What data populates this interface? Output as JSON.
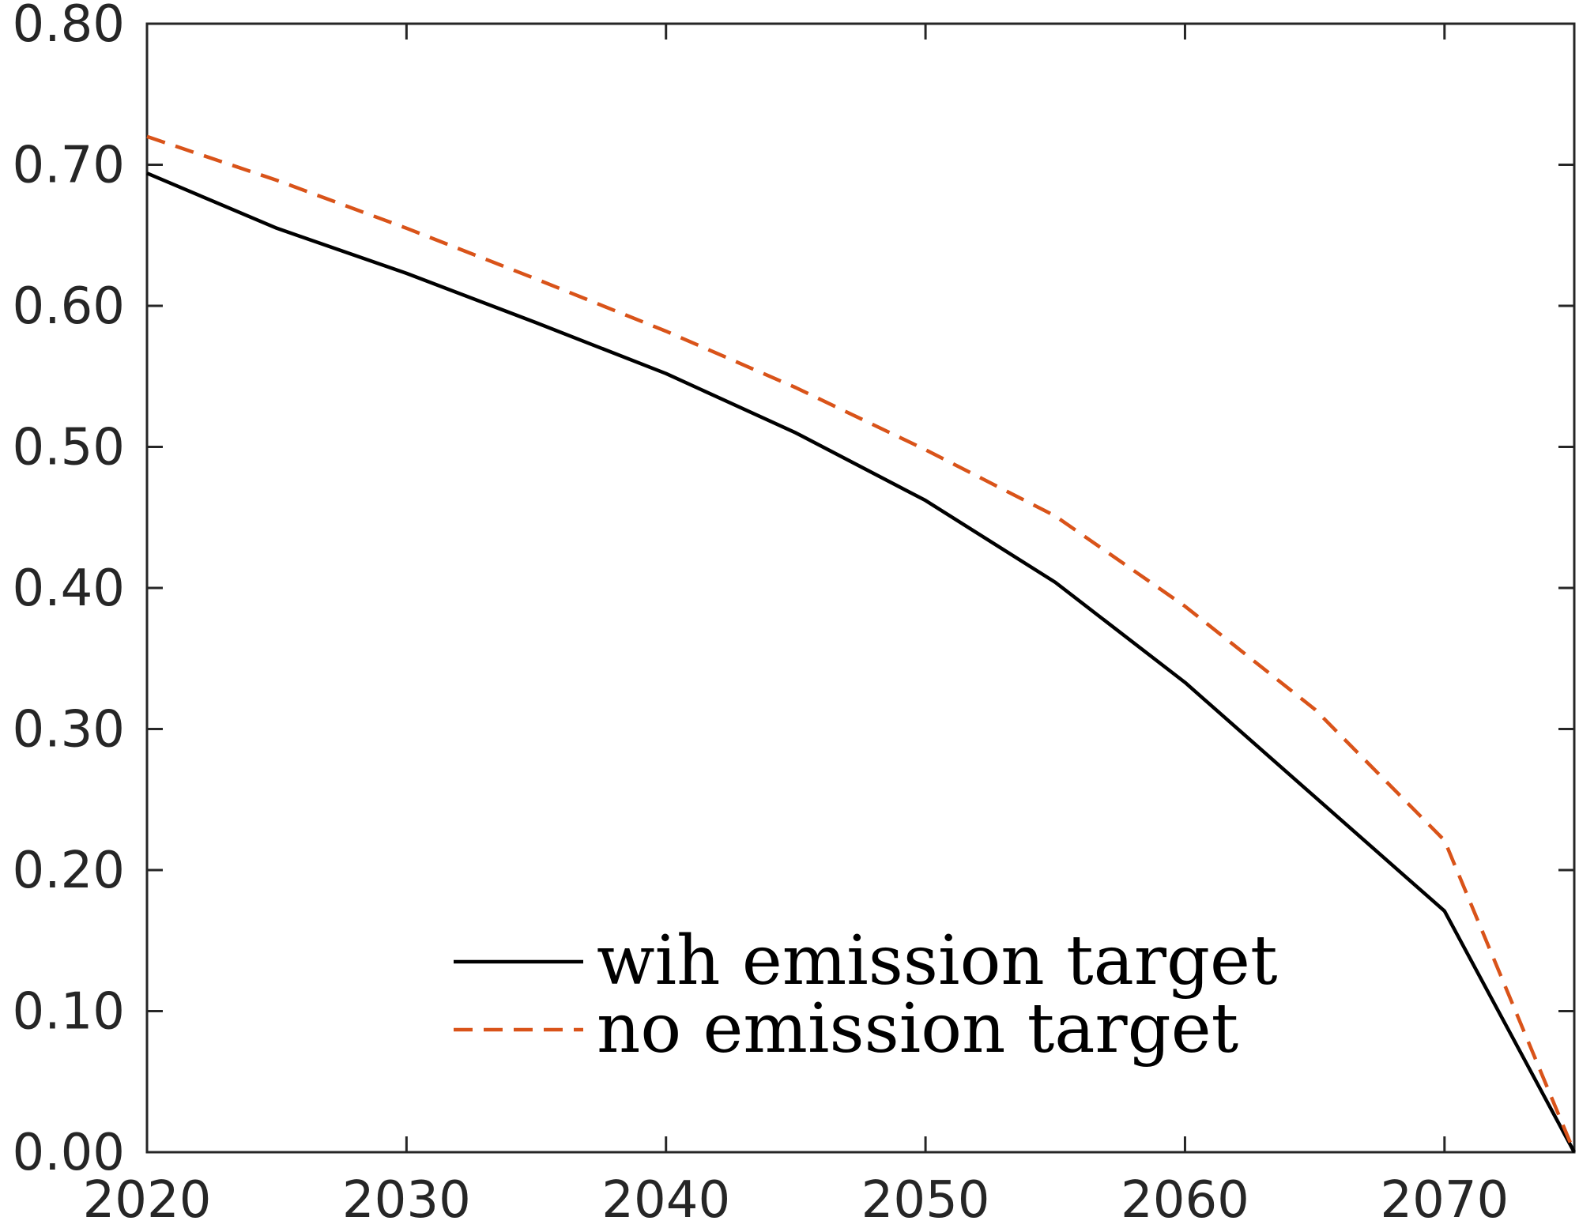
{
  "chart_data": {
    "type": "line",
    "title": "",
    "xlabel": "",
    "ylabel": "",
    "xlim": [
      2020,
      2075
    ],
    "ylim": [
      0,
      0.8
    ],
    "xticks": [
      2020,
      2030,
      2040,
      2050,
      2060,
      2070
    ],
    "xtick_labels": [
      "2020",
      "2030",
      "2040",
      "2050",
      "2060",
      "2070"
    ],
    "yticks": [
      0,
      0.1,
      0.2,
      0.3,
      0.4,
      0.5,
      0.6,
      0.7,
      0.8
    ],
    "ytick_labels": [
      "0.00",
      "0.10",
      "0.20",
      "0.30",
      "0.40",
      "0.50",
      "0.60",
      "0.70",
      "0.80"
    ],
    "grid": false,
    "legend_position": "bottom-center",
    "x": [
      2020,
      2025,
      2030,
      2035,
      2040,
      2045,
      2050,
      2055,
      2060,
      2065,
      2070,
      2075
    ],
    "series": [
      {
        "name": "wih emission target",
        "color": "#000000",
        "style": "solid",
        "values": [
          0.694,
          0.655,
          0.623,
          0.588,
          0.552,
          0.51,
          0.462,
          0.404,
          0.333,
          0.252,
          0.171,
          0.0
        ]
      },
      {
        "name": "no emission target",
        "color": "#D95319",
        "style": "dashed",
        "values": [
          0.72,
          0.689,
          0.655,
          0.619,
          0.582,
          0.542,
          0.498,
          0.451,
          0.387,
          0.314,
          0.221,
          0.0
        ]
      }
    ]
  }
}
